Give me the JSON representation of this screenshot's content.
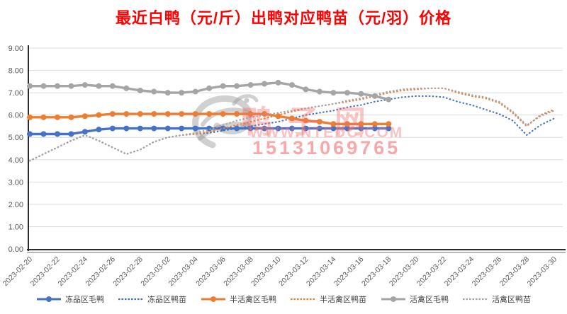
{
  "page": {
    "title": "最近白鸭（元/斤）出鸭对应鸭苗（元/羽）价格"
  },
  "watermark": {
    "brand": "鸭子网",
    "url": "WWW.NTEDC.COM",
    "phone": "15131069765"
  },
  "chart_data": {
    "type": "line",
    "title": "最近白鸭（元/斤）出鸭对应鸭苗（元/羽）价格",
    "xlabel": "",
    "ylabel": "",
    "ylim": [
      0,
      9
    ],
    "y_tick_step": 1,
    "y_tick_labels": [
      "0.00",
      "1.00",
      "2.00",
      "3.00",
      "4.00",
      "5.00",
      "6.00",
      "7.00",
      "8.00",
      "9.00"
    ],
    "grid": true,
    "legend_position": "bottom",
    "x": [
      "2023-02-20",
      "2023-02-21",
      "2023-02-22",
      "2023-02-23",
      "2023-02-24",
      "2023-02-25",
      "2023-02-26",
      "2023-02-27",
      "2023-02-28",
      "2023-03-01",
      "2023-03-02",
      "2023-03-03",
      "2023-03-04",
      "2023-03-05",
      "2023-03-06",
      "2023-03-07",
      "2023-03-08",
      "2023-03-09",
      "2023-03-10",
      "2023-03-11",
      "2023-03-12",
      "2023-03-13",
      "2023-03-14",
      "2023-03-15",
      "2023-03-16",
      "2023-03-17",
      "2023-03-18",
      "2023-03-19",
      "2023-03-20",
      "2023-03-21",
      "2023-03-22",
      "2023-03-23",
      "2023-03-24",
      "2023-03-25",
      "2023-03-26",
      "2023-03-27",
      "2023-03-28",
      "2023-03-29",
      "2023-03-30"
    ],
    "x_tick_every": 2,
    "x_tick_labels": [
      "2023-02-20",
      "2023-02-22",
      "2023-02-24",
      "2023-02-26",
      "2023-02-28",
      "2023-03-02",
      "2023-03-04",
      "2023-03-06",
      "2023-03-08",
      "2023-03-10",
      "2023-03-12",
      "2023-03-14",
      "2023-03-16",
      "2023-03-18",
      "2023-03-20",
      "2023-03-22",
      "2023-03-24",
      "2023-03-26",
      "2023-03-28",
      "2023-03-30"
    ],
    "series": [
      {
        "name": "冻品区毛鸭",
        "style": "solid",
        "marker": true,
        "color": "#4472C4",
        "values": [
          5.15,
          5.15,
          5.15,
          5.15,
          5.25,
          5.35,
          5.4,
          5.4,
          5.4,
          5.4,
          5.4,
          5.4,
          5.4,
          5.4,
          5.4,
          5.4,
          5.4,
          5.4,
          5.4,
          5.4,
          5.4,
          5.4,
          5.4,
          5.4,
          5.4,
          5.4,
          5.4
        ]
      },
      {
        "name": "冻品区鸭苗",
        "style": "dotted",
        "marker": false,
        "color": "#4472C4",
        "values": [
          3.95,
          4.25,
          4.55,
          4.85,
          5.1,
          4.85,
          4.55,
          4.25,
          4.45,
          4.8,
          5.0,
          5.1,
          5.15,
          5.2,
          5.3,
          5.4,
          5.5,
          5.6,
          5.7,
          5.85,
          6.0,
          6.1,
          6.2,
          6.35,
          6.45,
          6.6,
          6.7,
          6.8,
          6.85,
          6.85,
          6.8,
          6.6,
          6.45,
          6.25,
          6.05,
          5.75,
          5.1,
          5.55,
          5.85
        ]
      },
      {
        "name": "半活禽区毛鸭",
        "style": "solid",
        "marker": true,
        "color": "#ED7D31",
        "values": [
          5.9,
          5.9,
          5.9,
          5.9,
          5.95,
          6.0,
          6.05,
          6.05,
          6.05,
          6.05,
          6.05,
          6.05,
          6.05,
          6.05,
          6.05,
          6.05,
          6.05,
          6.05,
          5.95,
          5.85,
          5.75,
          5.7,
          5.6,
          5.6,
          5.6,
          5.6,
          5.6
        ]
      },
      {
        "name": "半活禽区鸭苗",
        "style": "dotted",
        "marker": false,
        "color": "#ED7D31",
        "values": [
          3.95,
          4.25,
          4.55,
          4.85,
          5.1,
          4.85,
          4.55,
          4.25,
          4.45,
          4.8,
          5.0,
          5.1,
          5.15,
          5.25,
          5.4,
          5.55,
          5.7,
          5.85,
          6.0,
          6.15,
          6.3,
          6.4,
          6.5,
          6.6,
          6.7,
          6.85,
          7.0,
          7.1,
          7.15,
          7.2,
          7.2,
          7.0,
          6.85,
          6.75,
          6.55,
          6.1,
          5.5,
          6.0,
          6.25
        ]
      },
      {
        "name": "活禽区毛鸭",
        "style": "solid",
        "marker": true,
        "color": "#A5A5A5",
        "values": [
          7.3,
          7.3,
          7.3,
          7.3,
          7.35,
          7.3,
          7.3,
          7.2,
          7.1,
          7.05,
          7.0,
          7.0,
          7.05,
          7.2,
          7.3,
          7.3,
          7.35,
          7.4,
          7.45,
          7.35,
          7.15,
          7.05,
          7.0,
          7.0,
          6.95,
          6.85,
          6.7
        ]
      },
      {
        "name": "活禽区鸭苗",
        "style": "dotted",
        "marker": false,
        "color": "#A5A5A5",
        "values": [
          3.95,
          4.25,
          4.55,
          4.85,
          5.1,
          4.85,
          4.55,
          4.25,
          4.45,
          4.8,
          5.0,
          5.1,
          5.2,
          5.35,
          5.55,
          5.75,
          5.9,
          6.0,
          6.1,
          6.2,
          6.3,
          6.4,
          6.5,
          6.65,
          6.75,
          6.9,
          7.05,
          7.15,
          7.2,
          7.2,
          7.2,
          7.05,
          6.9,
          6.8,
          6.6,
          6.15,
          5.55,
          5.95,
          6.2
        ]
      }
    ],
    "colors": {
      "title_red": "#FF0000",
      "grid_gray": "#DCDCDC",
      "axis_dark": "#2b2b2b",
      "tick_label_gray": "#595959",
      "watermark_pink": "#F26E6E"
    }
  }
}
